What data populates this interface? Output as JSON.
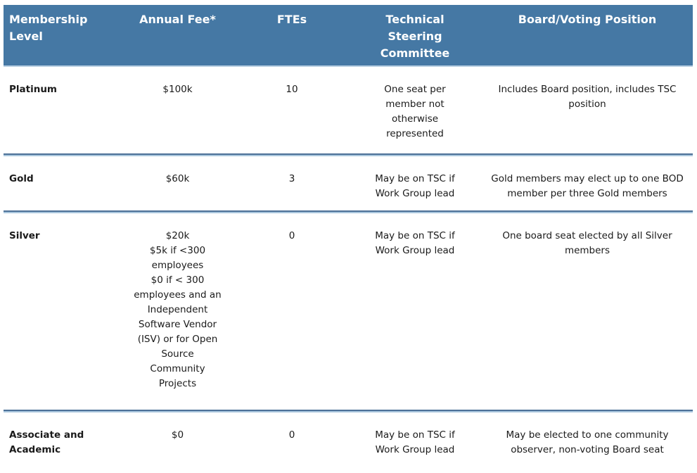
{
  "table": {
    "title": "Membership levels table",
    "colors": {
      "header_bg": "#4578A4",
      "header_text": "#FFFFFF",
      "header_underline": "#B9CFE2",
      "divider_dark": "#4C7097",
      "divider_light": "#A9C6DD",
      "body_text": "#1A1A1A"
    },
    "header": {
      "columns": [
        "Membership\nLevel",
        "Annual Fee*",
        "FTEs",
        "Technical\nSteering\nCommittee",
        "Board/Voting Position"
      ]
    },
    "rows": [
      {
        "level": "Platinum",
        "annual_fee": "$100k",
        "ftes": "10",
        "tsc": "One seat per\nmember not\notherwise\nrepresented",
        "board": "Includes Board position, includes TSC\nposition"
      },
      {
        "level": "Gold",
        "annual_fee": "$60k",
        "ftes": "3",
        "tsc": "May be on TSC if\nWork Group lead",
        "board": "Gold members may elect up to one BOD\nmember per three Gold members"
      },
      {
        "level": "Silver",
        "annual_fee": "$20k\n$5k if <300\nemployees\n$0 if < 300\nemployees and an\nIndependent\nSoftware Vendor\n(ISV) or for Open\nSource\nCommunity\nProjects",
        "ftes": "0",
        "tsc": "May be on TSC if\nWork Group lead",
        "board": "One board seat elected by all Silver\nmembers"
      },
      {
        "level": "Associate and\nAcademic",
        "annual_fee": "$0",
        "ftes": "0",
        "tsc": "May be on TSC if\nWork Group lead",
        "board": "May be elected to one community\nobserver, non-voting Board seat"
      }
    ]
  }
}
